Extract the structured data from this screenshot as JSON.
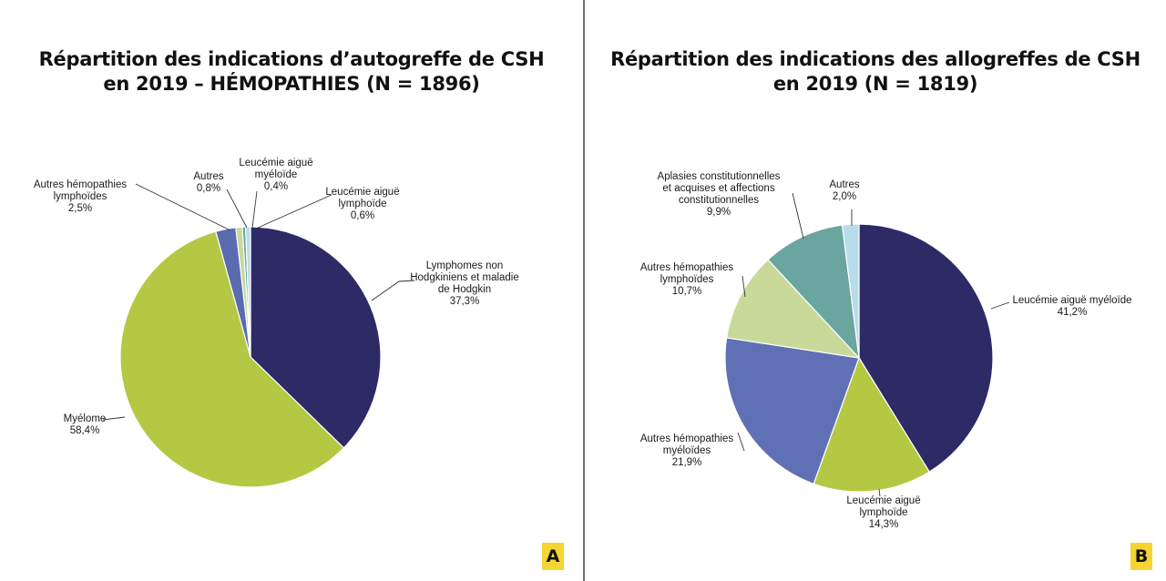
{
  "chart_data": [
    {
      "type": "pie",
      "title_lines": [
        "Répartition des indications d’autogreffe de CSH",
        "en 2019 – HÉMOPATHIES (N = 1896)"
      ],
      "badge": "A",
      "slices": [
        {
          "label_lines": [
            "Lymphomes non",
            "Hodgkiniens et maladie",
            "de Hodgkin"
          ],
          "value_text": "37,3%",
          "value": 37.3,
          "color": "#2e2a66"
        },
        {
          "label_lines": [
            "Myélome"
          ],
          "value_text": "58,4%",
          "value": 58.4,
          "color": "#b5c843"
        },
        {
          "label_lines": [
            "Autres hémopathies",
            "lymphoïdes"
          ],
          "value_text": "2,5%",
          "value": 2.5,
          "color": "#5a6bb0"
        },
        {
          "label_lines": [
            "Autres"
          ],
          "value_text": "0,8%",
          "value": 0.8,
          "color": "#c9d99a"
        },
        {
          "label_lines": [
            "Leucémie aiguë",
            "myéloïde"
          ],
          "value_text": "0,4%",
          "value": 0.4,
          "color": "#6aa59f"
        },
        {
          "label_lines": [
            "Leucémie aiguë",
            "lymphoïde"
          ],
          "value_text": "0,6%",
          "value": 0.6,
          "color": "#b8dcea"
        }
      ]
    },
    {
      "type": "pie",
      "title_lines": [
        "Répartition des indications des allogreffes de CSH",
        "en 2019 (N = 1819)"
      ],
      "badge": "B",
      "slices": [
        {
          "label_lines": [
            "Leucémie aiguë myéloïde"
          ],
          "value_text": "41,2%",
          "value": 41.2,
          "color": "#2e2a66"
        },
        {
          "label_lines": [
            "Leucémie aiguë",
            "lymphoïde"
          ],
          "value_text": "14,3%",
          "value": 14.3,
          "color": "#b5c843"
        },
        {
          "label_lines": [
            "Autres hémopathies",
            "myéloïdes"
          ],
          "value_text": "21,9%",
          "value": 21.9,
          "color": "#5f70b5"
        },
        {
          "label_lines": [
            "Autres hémopathies",
            "lymphoïdes"
          ],
          "value_text": "10,7%",
          "value": 10.7,
          "color": "#c9d99a"
        },
        {
          "label_lines": [
            "Aplasies constitutionnelles",
            "et acquises et affections",
            "constitutionnelles"
          ],
          "value_text": "9,9%",
          "value": 9.9,
          "color": "#6aa59f"
        },
        {
          "label_lines": [
            "Autres"
          ],
          "value_text": "2,0%",
          "value": 2.0,
          "color": "#b8dcea"
        }
      ]
    }
  ]
}
